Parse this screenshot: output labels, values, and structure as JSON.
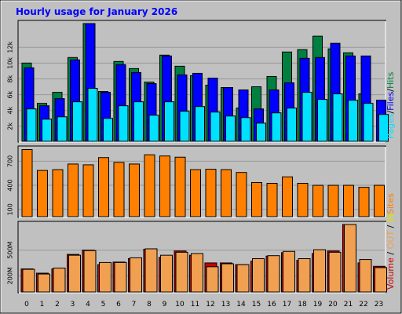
{
  "title": "Hourly usage for January 2026",
  "colors": {
    "frame_bg": "#c0c0c0",
    "plot_bg": "#c0c0c0",
    "title": "#0000ff",
    "hits": "#008040",
    "files": "#0000ff",
    "pages": "#00e0ff",
    "sites": "#ff8000",
    "volume": "#cc0000",
    "in_out": "#f0a050",
    "grid": "#999999",
    "bar_edge": "#000000"
  },
  "chart_data": [
    {
      "type": "bar",
      "title": "Hourly usage for January 2026",
      "categories": [
        "0",
        "1",
        "2",
        "3",
        "4",
        "5",
        "6",
        "7",
        "8",
        "9",
        "10",
        "11",
        "12",
        "13",
        "14",
        "15",
        "16",
        "17",
        "18",
        "19",
        "20",
        "21",
        "22",
        "23"
      ],
      "ylim": [
        0,
        15000
      ],
      "yticks": [
        "2k",
        "4k",
        "6k",
        "8k",
        "10k",
        "12k"
      ],
      "ytick_values": [
        2000,
        4000,
        6000,
        8000,
        10000,
        12000
      ],
      "side_labels": [
        {
          "key": "pages",
          "text": "Pages",
          "color": "#00e0ff"
        },
        {
          "key": "sep1",
          "text": "/",
          "color": "#000000"
        },
        {
          "key": "files",
          "text": "Files",
          "color": "#0000ff"
        },
        {
          "key": "sep2",
          "text": "/",
          "color": "#000000"
        },
        {
          "key": "hits",
          "text": "Hits",
          "color": "#008040"
        }
      ],
      "series": [
        {
          "name": "Hits",
          "color": "#008040",
          "values": [
            10000,
            4900,
            6300,
            10700,
            15000,
            6400,
            10200,
            9300,
            7600,
            11000,
            9600,
            8400,
            7200,
            6900,
            4300,
            7000,
            8300,
            11400,
            11700,
            13400,
            11800,
            11300,
            6100,
            0
          ]
        },
        {
          "name": "Files",
          "color": "#0000ff",
          "values": [
            9400,
            4600,
            5500,
            10400,
            15000,
            6300,
            9800,
            8800,
            7400,
            10900,
            8500,
            8700,
            8100,
            6900,
            6600,
            4200,
            6600,
            7500,
            10600,
            10700,
            12500,
            10900,
            10900,
            5300
          ]
        },
        {
          "name": "Pages",
          "color": "#00e0ff",
          "values": [
            4200,
            2900,
            3200,
            5100,
            6800,
            3000,
            4600,
            5100,
            3400,
            5100,
            3900,
            4500,
            3800,
            3300,
            3100,
            2400,
            3700,
            4300,
            6300,
            5400,
            6100,
            5300,
            4900,
            3500
          ]
        }
      ]
    },
    {
      "type": "bar",
      "categories": [
        "0",
        "1",
        "2",
        "3",
        "4",
        "5",
        "6",
        "7",
        "8",
        "9",
        "10",
        "11",
        "12",
        "13",
        "14",
        "15",
        "16",
        "17",
        "18",
        "19",
        "20",
        "21",
        "22",
        "23"
      ],
      "ylim": [
        0,
        850
      ],
      "yticks": [
        "100",
        "400",
        "700"
      ],
      "ytick_values": [
        100,
        400,
        700
      ],
      "side_labels": [
        {
          "key": "sites",
          "text": "Sites",
          "color": "#ff8000"
        }
      ],
      "series": [
        {
          "name": "Sites",
          "color": "#ff8000",
          "values": [
            845,
            585,
            595,
            665,
            655,
            745,
            685,
            665,
            780,
            765,
            750,
            595,
            600,
            595,
            560,
            435,
            425,
            505,
            425,
            400,
            400,
            400,
            375,
            400
          ]
        }
      ]
    },
    {
      "type": "bar",
      "categories": [
        "0",
        "1",
        "2",
        "3",
        "4",
        "5",
        "6",
        "7",
        "8",
        "9",
        "10",
        "11",
        "12",
        "13",
        "14",
        "15",
        "16",
        "17",
        "18",
        "19",
        "20",
        "21",
        "22",
        "23"
      ],
      "ylim": [
        0,
        800
      ],
      "yticks": [
        "200M",
        "500M"
      ],
      "ytick_values": [
        200,
        500
      ],
      "side_labels": [
        {
          "key": "volume",
          "text": "Volume",
          "color": "#cc0000"
        },
        {
          "key": "sep1",
          "text": " / ",
          "color": "#000000"
        },
        {
          "key": "out",
          "text": "OUT",
          "color": "#f0a050"
        },
        {
          "key": "sep2",
          "text": " / ",
          "color": "#000000"
        },
        {
          "key": "in",
          "text": "IN",
          "color": "#e0e000"
        }
      ],
      "series": [
        {
          "name": "Volume",
          "color": "#cc0000",
          "values": [
            280,
            230,
            280,
            450,
            500,
            330,
            360,
            400,
            510,
            415,
            490,
            440,
            350,
            350,
            330,
            370,
            430,
            470,
            380,
            460,
            490,
            800,
            350,
            310
          ]
        },
        {
          "name": "OUT",
          "color": "#f0a050",
          "values": [
            275,
            220,
            290,
            440,
            495,
            355,
            355,
            410,
            515,
            440,
            475,
            460,
            305,
            340,
            330,
            400,
            435,
            485,
            400,
            505,
            475,
            800,
            390,
            295
          ]
        }
      ]
    }
  ]
}
